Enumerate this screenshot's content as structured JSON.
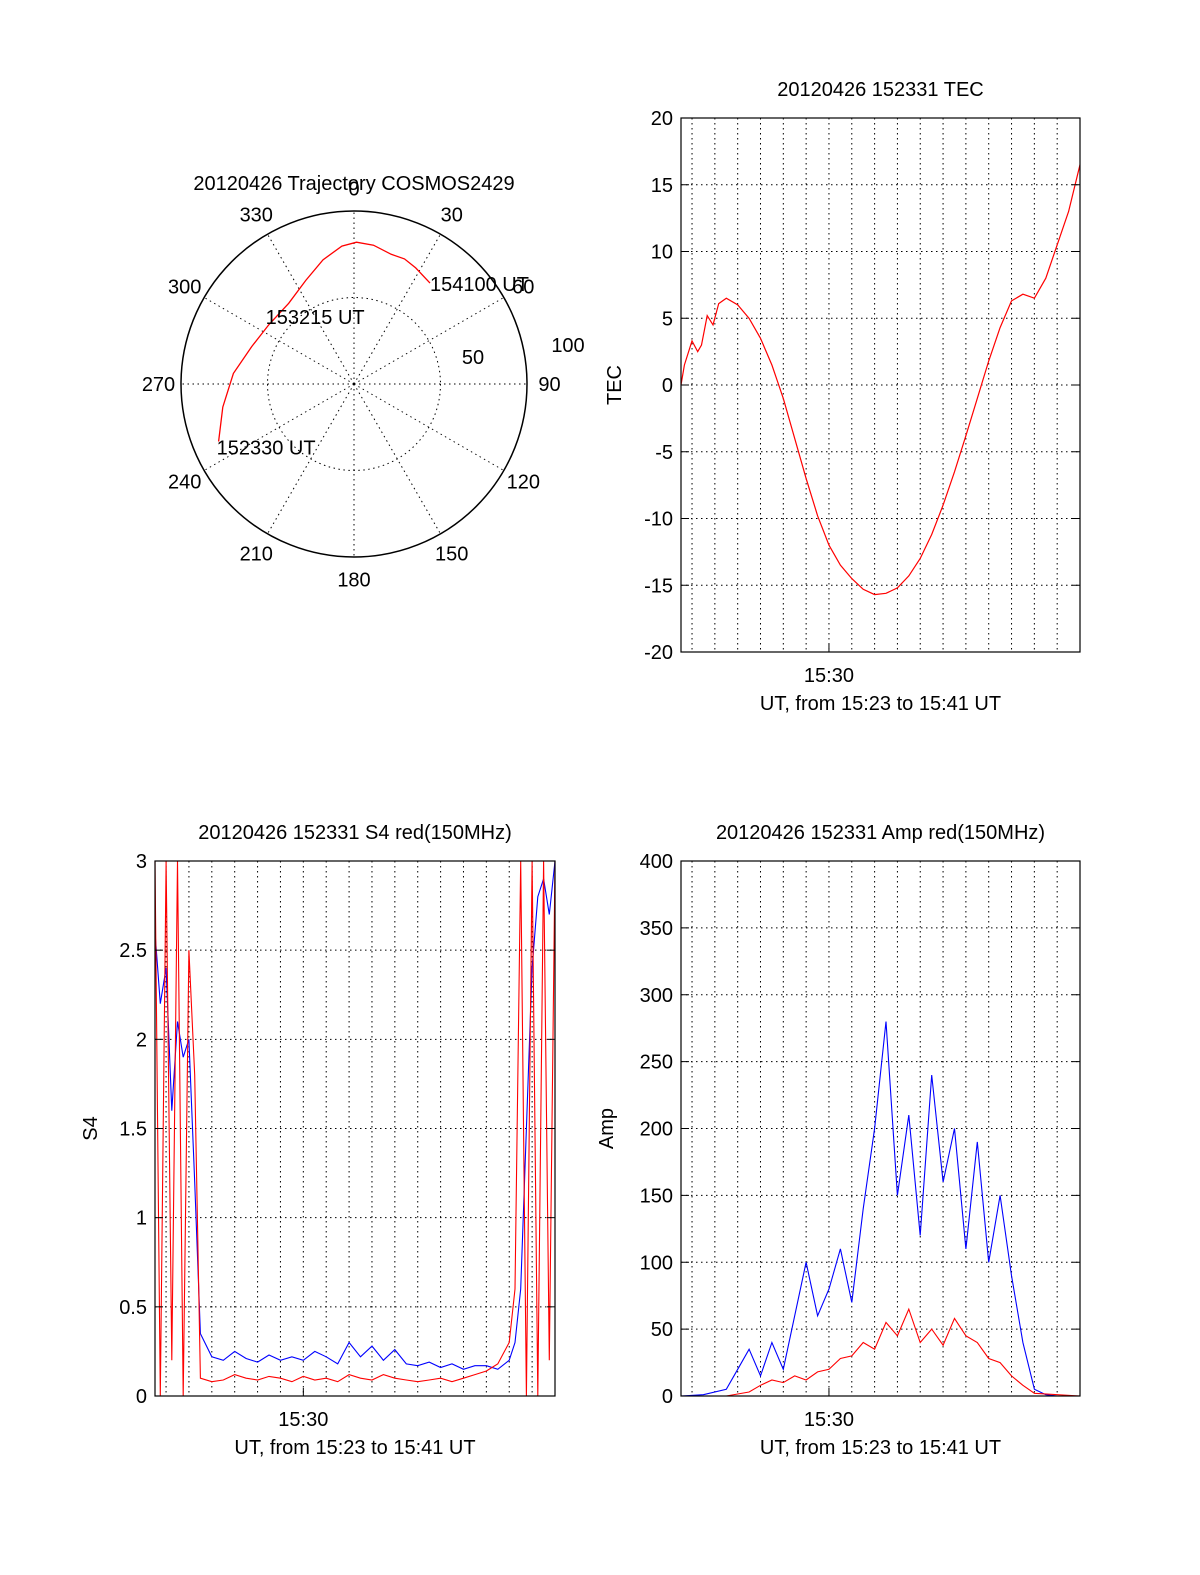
{
  "colors": {
    "background": "#ffffff",
    "red_series": "#ff0000",
    "blue_series": "#0000ff",
    "axes": "#000000"
  },
  "chart_data": [
    {
      "type": "polar",
      "title": "20120426 Trajectory COSMOS2429",
      "azimuth_labels": [
        "0",
        "30",
        "60",
        "90",
        "120",
        "150",
        "180",
        "210",
        "240",
        "270",
        "300",
        "330"
      ],
      "radial_labels": [
        "50",
        "100"
      ],
      "grid": true,
      "series": [
        {
          "color": "red",
          "points": [
            {
              "azimuth": 247,
              "radius": 85
            },
            {
              "azimuth": 260,
              "radius": 77
            },
            {
              "azimuth": 275,
              "radius": 70
            },
            {
              "azimuth": 290,
              "radius": 63
            },
            {
              "azimuth": 305,
              "radius": 60
            },
            {
              "azimuth": 321,
              "radius": 60
            },
            {
              "azimuth": 335,
              "radius": 66
            },
            {
              "azimuth": 346,
              "radius": 74
            },
            {
              "azimuth": 355,
              "radius": 80
            },
            {
              "azimuth": 1,
              "radius": 82
            },
            {
              "azimuth": 8,
              "radius": 81
            },
            {
              "azimuth": 16,
              "radius": 78
            },
            {
              "azimuth": 22,
              "radius": 78
            },
            {
              "azimuth": 28,
              "radius": 76
            },
            {
              "azimuth": 37,
              "radius": 73
            }
          ]
        }
      ],
      "annotations": [
        {
          "text": "154100 UT",
          "azimuth": 37,
          "radius": 73
        },
        {
          "text": "153215 UT",
          "azimuth": 330,
          "radius": 42
        },
        {
          "text": "152330 UT",
          "azimuth": 247,
          "radius": 85
        }
      ]
    },
    {
      "type": "line",
      "title": "20120426 152331 TEC",
      "ylabel": "TEC",
      "xlabel": "UT, from 15:23 to 15:41 UT",
      "xlim": [
        "15:23:31",
        "15:41:00"
      ],
      "ylim": [
        -20,
        20
      ],
      "y_ticks": [
        -20,
        -15,
        -10,
        -5,
        0,
        5,
        10,
        15,
        20
      ],
      "x_tick_labels": [
        {
          "x": "15:30:00",
          "label": "15:30"
        }
      ],
      "grid": true,
      "series": [
        {
          "color": "red",
          "x": [
            "15:23:31",
            "15:23:40",
            "15:24:00",
            "15:24:15",
            "15:24:25",
            "15:24:40",
            "15:24:55",
            "15:25:10",
            "15:25:30",
            "15:26:00",
            "15:26:30",
            "15:27:00",
            "15:27:30",
            "15:28:00",
            "15:28:30",
            "15:29:00",
            "15:29:30",
            "15:30:00",
            "15:30:30",
            "15:31:00",
            "15:31:30",
            "15:32:00",
            "15:32:30",
            "15:33:00",
            "15:33:30",
            "15:34:00",
            "15:34:30",
            "15:35:00",
            "15:35:30",
            "15:36:00",
            "15:36:30",
            "15:37:00",
            "15:37:30",
            "15:38:00",
            "15:38:30",
            "15:39:00",
            "15:39:30",
            "15:40:00",
            "15:40:30",
            "15:41:00"
          ],
          "values": [
            0,
            1.5,
            3.3,
            2.5,
            3.0,
            5.2,
            4.5,
            6.1,
            6.5,
            6.0,
            5.0,
            3.5,
            1.5,
            -1.0,
            -4.0,
            -7.0,
            -9.8,
            -12.0,
            -13.5,
            -14.5,
            -15.3,
            -15.7,
            -15.6,
            -15.2,
            -14.3,
            -13.0,
            -11.2,
            -9.0,
            -6.5,
            -3.8,
            -1.0,
            1.8,
            4.3,
            6.3,
            6.8,
            6.5,
            8.0,
            10.5,
            13.0,
            16.5
          ]
        }
      ]
    },
    {
      "type": "line",
      "title": "20120426 152331 S4 red(150MHz)",
      "ylabel": "S4",
      "xlabel": "UT, from 15:23 to 15:41 UT",
      "xlim": [
        "15:23:31",
        "15:41:00"
      ],
      "ylim": [
        0,
        3
      ],
      "y_ticks": [
        0,
        0.5,
        1,
        1.5,
        2,
        2.5,
        3
      ],
      "x_tick_labels": [
        {
          "x": "15:30:00",
          "label": "15:30"
        }
      ],
      "grid": true,
      "series": [
        {
          "color": "blue",
          "x": [
            "15:23:31",
            "15:23:45",
            "15:24:00",
            "15:24:15",
            "15:24:30",
            "15:24:45",
            "15:25:00",
            "15:25:15",
            "15:25:30",
            "15:26:00",
            "15:26:30",
            "15:27:00",
            "15:27:30",
            "15:28:00",
            "15:28:30",
            "15:29:00",
            "15:29:30",
            "15:30:00",
            "15:30:30",
            "15:31:00",
            "15:31:30",
            "15:32:00",
            "15:32:30",
            "15:33:00",
            "15:33:30",
            "15:34:00",
            "15:34:30",
            "15:35:00",
            "15:35:30",
            "15:36:00",
            "15:36:30",
            "15:37:00",
            "15:37:30",
            "15:38:00",
            "15:38:30",
            "15:39:00",
            "15:39:15",
            "15:39:30",
            "15:39:45",
            "15:40:00",
            "15:40:15",
            "15:40:30",
            "15:40:45",
            "15:41:00"
          ],
          "values": [
            2.6,
            2.2,
            2.4,
            1.6,
            2.1,
            1.9,
            2.0,
            1.2,
            0.35,
            0.22,
            0.2,
            0.25,
            0.21,
            0.19,
            0.23,
            0.2,
            0.22,
            0.2,
            0.25,
            0.22,
            0.18,
            0.3,
            0.22,
            0.28,
            0.2,
            0.26,
            0.18,
            0.17,
            0.19,
            0.16,
            0.18,
            0.15,
            0.17,
            0.17,
            0.15,
            0.2,
            0.3,
            0.6,
            1.5,
            2.4,
            2.8,
            2.9,
            2.7,
            3.0
          ]
        },
        {
          "color": "red",
          "x": [
            "15:23:31",
            "15:23:45",
            "15:24:00",
            "15:24:15",
            "15:24:30",
            "15:24:45",
            "15:25:00",
            "15:25:15",
            "15:25:30",
            "15:26:00",
            "15:26:30",
            "15:27:00",
            "15:27:30",
            "15:28:00",
            "15:28:30",
            "15:29:00",
            "15:29:30",
            "15:30:00",
            "15:30:30",
            "15:31:00",
            "15:31:30",
            "15:32:00",
            "15:32:30",
            "15:33:00",
            "15:33:30",
            "15:34:00",
            "15:34:30",
            "15:35:00",
            "15:35:30",
            "15:36:00",
            "15:36:30",
            "15:37:00",
            "15:37:30",
            "15:38:00",
            "15:38:30",
            "15:39:00",
            "15:39:15",
            "15:39:30",
            "15:39:45",
            "15:40:00",
            "15:40:15",
            "15:40:30",
            "15:40:45",
            "15:41:00"
          ],
          "values": [
            3.0,
            0.0,
            3.0,
            0.2,
            3.0,
            0.0,
            2.5,
            1.8,
            0.1,
            0.08,
            0.09,
            0.12,
            0.1,
            0.09,
            0.11,
            0.1,
            0.08,
            0.11,
            0.09,
            0.1,
            0.08,
            0.12,
            0.1,
            0.09,
            0.12,
            0.1,
            0.09,
            0.08,
            0.09,
            0.1,
            0.08,
            0.1,
            0.12,
            0.14,
            0.18,
            0.3,
            0.6,
            3.0,
            0.0,
            3.0,
            0.0,
            3.0,
            0.2,
            3.0
          ]
        }
      ]
    },
    {
      "type": "line",
      "title": "20120426 152331 Amp red(150MHz)",
      "ylabel": "Amp",
      "xlabel": "UT, from 15:23 to 15:41 UT",
      "xlim": [
        "15:23:31",
        "15:41:00"
      ],
      "ylim": [
        0,
        400
      ],
      "y_ticks": [
        0,
        50,
        100,
        150,
        200,
        250,
        300,
        350,
        400
      ],
      "x_tick_labels": [
        {
          "x": "15:30:00",
          "label": "15:30"
        }
      ],
      "grid": true,
      "series": [
        {
          "color": "blue",
          "x": [
            "15:23:31",
            "15:24:30",
            "15:25:30",
            "15:26:00",
            "15:26:30",
            "15:27:00",
            "15:27:30",
            "15:28:00",
            "15:28:30",
            "15:29:00",
            "15:29:30",
            "15:30:00",
            "15:30:30",
            "15:31:00",
            "15:31:30",
            "15:32:00",
            "15:32:30",
            "15:33:00",
            "15:33:30",
            "15:34:00",
            "15:34:30",
            "15:35:00",
            "15:35:30",
            "15:36:00",
            "15:36:30",
            "15:37:00",
            "15:37:30",
            "15:38:00",
            "15:38:30",
            "15:39:00",
            "15:39:30",
            "15:40:00",
            "15:41:00"
          ],
          "values": [
            0,
            1,
            5,
            20,
            35,
            15,
            40,
            20,
            60,
            100,
            60,
            80,
            110,
            70,
            140,
            200,
            280,
            150,
            210,
            120,
            240,
            160,
            200,
            110,
            190,
            100,
            150,
            90,
            40,
            5,
            1,
            0,
            0
          ]
        },
        {
          "color": "red",
          "x": [
            "15:23:31",
            "15:25:30",
            "15:26:30",
            "15:27:00",
            "15:27:30",
            "15:28:00",
            "15:28:30",
            "15:29:00",
            "15:29:30",
            "15:30:00",
            "15:30:30",
            "15:31:00",
            "15:31:30",
            "15:32:00",
            "15:32:30",
            "15:33:00",
            "15:33:30",
            "15:34:00",
            "15:34:30",
            "15:35:00",
            "15:35:30",
            "15:36:00",
            "15:36:30",
            "15:37:00",
            "15:37:30",
            "15:38:00",
            "15:38:30",
            "15:39:00",
            "15:41:00"
          ],
          "values": [
            0,
            0,
            3,
            8,
            12,
            10,
            15,
            12,
            18,
            20,
            28,
            30,
            40,
            35,
            55,
            45,
            65,
            40,
            50,
            38,
            58,
            45,
            40,
            28,
            25,
            15,
            8,
            2,
            0
          ]
        }
      ]
    }
  ]
}
